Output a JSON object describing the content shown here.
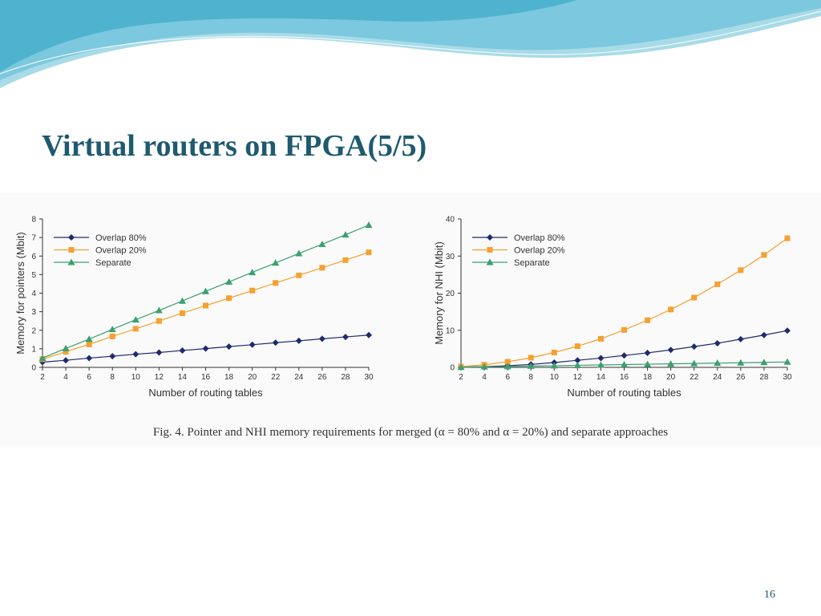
{
  "slide": {
    "title": "Virtual routers on FPGA(5/5)",
    "page_number": "16",
    "caption": "Fig. 4.    Pointer and NHI memory requirements for merged (α = 80% and α = 20%) and separate approaches"
  },
  "colors": {
    "title": "#1e5a70",
    "overlap80": "#1f2a6e",
    "overlap20": "#f5a030",
    "separate": "#3aa070",
    "wave_light": "#a8dbe8",
    "wave_mid": "#7cc8de",
    "wave_dark": "#4fb3cf"
  },
  "chart_data": [
    {
      "type": "line",
      "xlabel": "Number of routing tables",
      "ylabel": "Memory for pointers (Mbit)",
      "x": [
        2,
        4,
        6,
        8,
        10,
        12,
        14,
        16,
        18,
        20,
        22,
        24,
        26,
        28,
        30
      ],
      "xlim": [
        2,
        30
      ],
      "ylim": [
        0,
        8
      ],
      "yticks": [
        0,
        1,
        2,
        3,
        4,
        5,
        6,
        7,
        8
      ],
      "legend_position": "top-left",
      "series": [
        {
          "name": "Overlap 80%",
          "marker": "diamond",
          "color": "#1f2a6e",
          "values": [
            0.28,
            0.38,
            0.5,
            0.6,
            0.71,
            0.8,
            0.91,
            1.01,
            1.12,
            1.22,
            1.33,
            1.43,
            1.54,
            1.64,
            1.74
          ]
        },
        {
          "name": "Overlap 20%",
          "marker": "square",
          "color": "#f5a030",
          "values": [
            0.44,
            0.84,
            1.24,
            1.67,
            2.08,
            2.5,
            2.92,
            3.33,
            3.73,
            4.14,
            4.55,
            4.96,
            5.37,
            5.78,
            6.2
          ]
        },
        {
          "name": "Separate",
          "marker": "triangle",
          "color": "#3aa070",
          "values": [
            0.5,
            1.02,
            1.52,
            2.05,
            2.57,
            3.07,
            3.58,
            4.1,
            4.61,
            5.12,
            5.63,
            6.14,
            6.64,
            7.15,
            7.67
          ]
        }
      ]
    },
    {
      "type": "line",
      "xlabel": "Number of routing tables",
      "ylabel": "Memory for NHI (Mbit)",
      "x": [
        2,
        4,
        6,
        8,
        10,
        12,
        14,
        16,
        18,
        20,
        22,
        24,
        26,
        28,
        30
      ],
      "xlim": [
        2,
        30
      ],
      "ylim": [
        0,
        40
      ],
      "yticks": [
        0,
        10,
        20,
        30,
        40
      ],
      "legend_position": "top-left",
      "series": [
        {
          "name": "Overlap 80%",
          "marker": "diamond",
          "color": "#1f2a6e",
          "values": [
            0.1,
            0.2,
            0.45,
            0.8,
            1.3,
            1.9,
            2.5,
            3.2,
            3.9,
            4.7,
            5.6,
            6.5,
            7.6,
            8.7,
            9.9
          ]
        },
        {
          "name": "Overlap 20%",
          "marker": "square",
          "color": "#f5a030",
          "values": [
            0.2,
            0.7,
            1.5,
            2.6,
            4.0,
            5.7,
            7.7,
            10.1,
            12.7,
            15.6,
            18.8,
            22.4,
            26.2,
            30.3,
            34.8
          ]
        },
        {
          "name": "Separate",
          "marker": "triangle",
          "color": "#3aa070",
          "values": [
            0.05,
            0.15,
            0.25,
            0.35,
            0.45,
            0.55,
            0.65,
            0.75,
            0.85,
            0.95,
            1.05,
            1.15,
            1.25,
            1.35,
            1.45
          ]
        }
      ]
    }
  ]
}
